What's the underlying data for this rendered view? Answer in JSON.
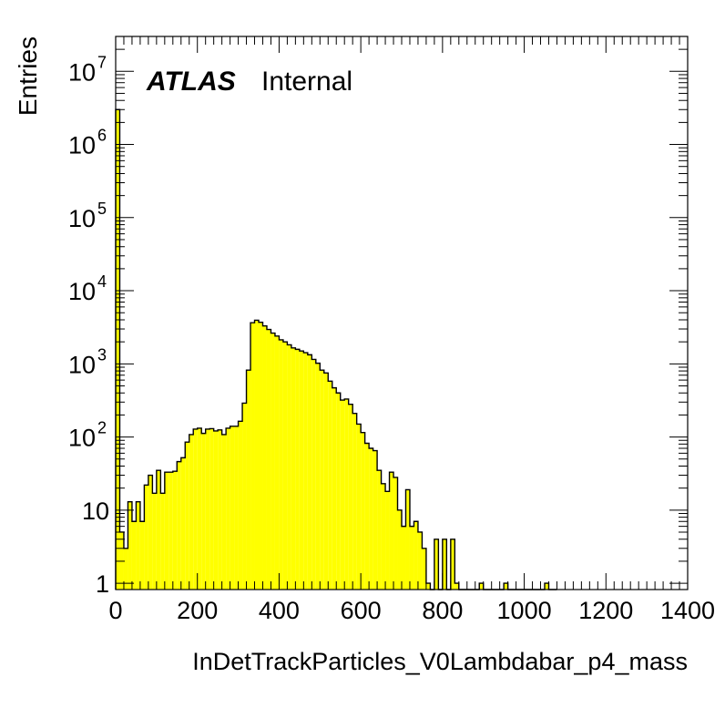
{
  "chart_data": {
    "type": "bar",
    "histogram": true,
    "fill_color": "#ffff00",
    "line_color": "#000000",
    "xlabel": "InDetTrackParticles_V0Lambdabar_p4_mass",
    "ylabel": "Entries",
    "xlim": [
      0,
      1400
    ],
    "ylim": [
      0.82,
      30000000
    ],
    "yscale": "log",
    "bin_width": 10,
    "x_ticks": [
      "0",
      "200",
      "400",
      "600",
      "800",
      "1000",
      "1200",
      "1400"
    ],
    "y_ticks": [
      {
        "base": "1",
        "exp": ""
      },
      {
        "base": "10",
        "exp": ""
      },
      {
        "base": "10",
        "exp": "2"
      },
      {
        "base": "10",
        "exp": "3"
      },
      {
        "base": "10",
        "exp": "4"
      },
      {
        "base": "10",
        "exp": "5"
      },
      {
        "base": "10",
        "exp": "6"
      },
      {
        "base": "10",
        "exp": "7"
      }
    ],
    "bins": [
      [
        0,
        3000000
      ],
      [
        10,
        5
      ],
      [
        20,
        3
      ],
      [
        30,
        13
      ],
      [
        40,
        7
      ],
      [
        50,
        13
      ],
      [
        60,
        7
      ],
      [
        70,
        22
      ],
      [
        80,
        30
      ],
      [
        90,
        17
      ],
      [
        100,
        35
      ],
      [
        110,
        17
      ],
      [
        120,
        33
      ],
      [
        130,
        33
      ],
      [
        140,
        34
      ],
      [
        150,
        46
      ],
      [
        160,
        52
      ],
      [
        170,
        85
      ],
      [
        180,
        108
      ],
      [
        190,
        128
      ],
      [
        200,
        132
      ],
      [
        210,
        112
      ],
      [
        220,
        128
      ],
      [
        230,
        130
      ],
      [
        240,
        121
      ],
      [
        250,
        125
      ],
      [
        260,
        108
      ],
      [
        270,
        132
      ],
      [
        280,
        140
      ],
      [
        290,
        140
      ],
      [
        300,
        164
      ],
      [
        310,
        290
      ],
      [
        320,
        820
      ],
      [
        330,
        3650
      ],
      [
        340,
        3950
      ],
      [
        350,
        3700
      ],
      [
        360,
        3300
      ],
      [
        370,
        2950
      ],
      [
        380,
        2630
      ],
      [
        390,
        2400
      ],
      [
        400,
        2130
      ],
      [
        410,
        2000
      ],
      [
        420,
        1820
      ],
      [
        430,
        1650
      ],
      [
        440,
        1580
      ],
      [
        450,
        1500
      ],
      [
        460,
        1420
      ],
      [
        470,
        1330
      ],
      [
        480,
        1150
      ],
      [
        490,
        1020
      ],
      [
        500,
        820
      ],
      [
        510,
        750
      ],
      [
        520,
        580
      ],
      [
        530,
        470
      ],
      [
        540,
        400
      ],
      [
        550,
        320
      ],
      [
        560,
        330
      ],
      [
        570,
        280
      ],
      [
        580,
        210
      ],
      [
        590,
        150
      ],
      [
        600,
        115
      ],
      [
        610,
        82
      ],
      [
        620,
        70
      ],
      [
        630,
        65
      ],
      [
        640,
        35
      ],
      [
        650,
        23
      ],
      [
        660,
        18
      ],
      [
        670,
        33
      ],
      [
        680,
        28
      ],
      [
        690,
        10
      ],
      [
        700,
        6
      ],
      [
        710,
        19
      ],
      [
        720,
        6
      ],
      [
        730,
        7
      ],
      [
        740,
        5
      ],
      [
        750,
        3
      ],
      [
        760,
        1
      ],
      [
        770,
        0
      ],
      [
        780,
        4
      ],
      [
        790,
        0
      ],
      [
        800,
        4
      ],
      [
        810,
        0
      ],
      [
        820,
        4
      ],
      [
        830,
        1
      ],
      [
        840,
        0
      ],
      [
        850,
        0
      ],
      [
        860,
        0
      ],
      [
        870,
        0
      ],
      [
        880,
        0
      ],
      [
        890,
        1
      ],
      [
        900,
        0
      ],
      [
        910,
        0
      ],
      [
        920,
        0
      ],
      [
        930,
        0
      ],
      [
        940,
        0
      ],
      [
        950,
        1
      ],
      [
        960,
        0
      ],
      [
        970,
        0
      ],
      [
        980,
        0
      ],
      [
        990,
        0
      ],
      [
        1000,
        0
      ],
      [
        1010,
        0
      ],
      [
        1020,
        0
      ],
      [
        1030,
        0
      ],
      [
        1040,
        0
      ],
      [
        1050,
        1
      ],
      [
        1060,
        0
      ],
      [
        1070,
        0
      ]
    ]
  },
  "label": {
    "experiment": "ATLAS",
    "status": "Internal"
  }
}
